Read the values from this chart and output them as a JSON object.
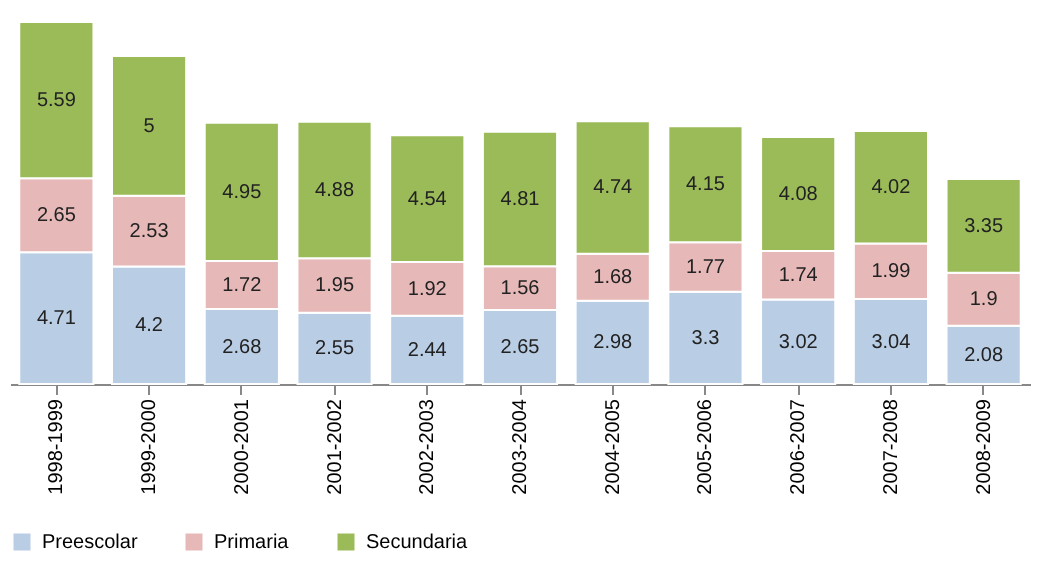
{
  "chart_data": {
    "type": "bar",
    "stacked": true,
    "data_labels": true,
    "tick_labels": "x",
    "grid": false,
    "legend": "bottom",
    "categories": [
      "1998-1999",
      "1999-2000",
      "2000-2001",
      "2001-2002",
      "2002-2003",
      "2003-2004",
      "2004-2005",
      "2005-2006",
      "2006-2007",
      "2007-2008",
      "2008-2009"
    ],
    "series": [
      {
        "name": "Preescolar",
        "color": "#b9cde5",
        "values": [
          4.71,
          4.2,
          2.68,
          2.55,
          2.44,
          2.65,
          2.98,
          3.3,
          3.02,
          3.04,
          2.08
        ]
      },
      {
        "name": "Primaria",
        "color": "#e6b9b8",
        "values": [
          2.65,
          2.53,
          1.72,
          1.95,
          1.92,
          1.56,
          1.68,
          1.77,
          1.74,
          1.99,
          1.9
        ]
      },
      {
        "name": "Secundaria",
        "color": "#9bbb59",
        "values": [
          5.59,
          5,
          4.95,
          4.88,
          4.54,
          4.81,
          4.74,
          4.15,
          4.08,
          4.02,
          3.35
        ]
      }
    ]
  }
}
